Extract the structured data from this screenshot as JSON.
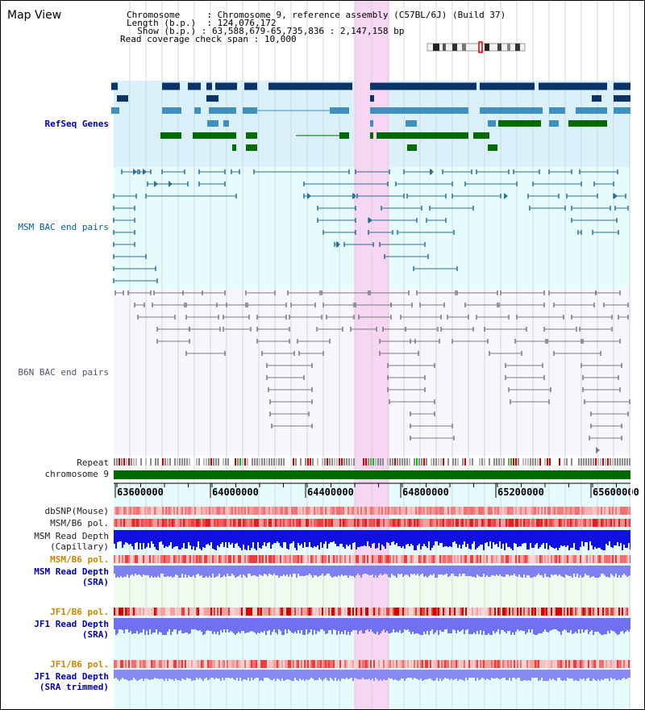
{
  "title": "Map View",
  "info": {
    "chromosome_label": "Chromosome",
    "chromosome_value": "Chromosome 9, reference assembly (C57BL/6J) (Build 37)",
    "length_label": "Length (b.p.)",
    "length_value": "124,076,172",
    "show_label": "Show (b.p.)",
    "show_value": "63,588,679-65,735,836 : 2,147,158 bp",
    "coverage_label": "Read coverage check span",
    "coverage_value": "10,000"
  },
  "tracks": {
    "refseq": "RefSeq Genes",
    "msm_bac": "MSM BAC end pairs",
    "b6n_bac": "B6N BAC end pairs",
    "repeat": "Repeat",
    "chromosome": "chromosome 9",
    "dbsnp": "dbSNP(Mouse)",
    "msm_b6_pol": "MSM/B6 pol.",
    "msm_depth_cap_1": "MSM Read Depth",
    "msm_depth_cap_2": "(Capillary)",
    "msm_b6_pol_sra": "MSM/B6 pol.",
    "msm_depth_sra_1": "MSM Read Depth",
    "msm_depth_sra_2": "(SRA)",
    "jf1_b6_pol": "JF1/B6 pol.",
    "jf1_depth_1": "JF1 Read Depth",
    "jf1_depth_2": "(SRA)",
    "jf1_b6_pol_2": "JF1/B6 pol.",
    "jf1_trim_1": "JF1 Read Depth",
    "jf1_trim_2": "(SRA trimmed)"
  },
  "ruler": {
    "ticks": [
      "63600000",
      "64000000",
      "64400000",
      "64800000",
      "65200000",
      "65600000"
    ]
  },
  "colors": {
    "refseq_bg": "#daf0fa",
    "bac_bg": "#e6fbfb",
    "b6n_bg": "#f6f6fc",
    "highlight": "#f7d6f3",
    "refseq_dark": "#0a3368",
    "refseq_mid": "#3f8fbf",
    "refseq_green": "#006a00",
    "bac_line": "#2f6f90",
    "b6n_line": "#7a7a7a",
    "chrom_green": "#006a00",
    "depth_blue": "#1010e0",
    "depth_light": "#7070f0"
  }
}
